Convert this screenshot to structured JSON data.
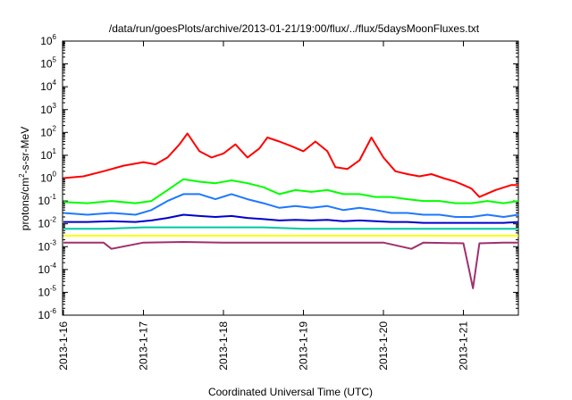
{
  "chart_data": {
    "type": "line",
    "title": "/data/run/goesPlots/archive/2013-01-21/19:00/flux/../flux/5daysMoonFluxes.txt",
    "xlabel": "Coordinated Universal Time (UTC)",
    "ylabel_parts": [
      "protons/cm",
      "2",
      "-s-sr-MeV"
    ],
    "ylabel": "protons/cm2-s-sr-MeV",
    "yscale": "log",
    "ylim": [
      1e-06,
      1000000.0
    ],
    "xlim": [
      "2013-1-16",
      "2013-1-21 19:00"
    ],
    "x_ticks": [
      "2013-1-16",
      "2013-1-17",
      "2013-1-18",
      "2013-1-19",
      "2013-1-20",
      "2013-1-21"
    ],
    "y_ticks": [
      {
        "base": "10",
        "exp": "-6"
      },
      {
        "base": "10",
        "exp": "-5"
      },
      {
        "base": "10",
        "exp": "-4"
      },
      {
        "base": "10",
        "exp": "-3"
      },
      {
        "base": "10",
        "exp": "-2"
      },
      {
        "base": "10",
        "exp": "-1"
      },
      {
        "base": "10",
        "exp": "0"
      },
      {
        "base": "10",
        "exp": "1"
      },
      {
        "base": "10",
        "exp": "2"
      },
      {
        "base": "10",
        "exp": "3"
      },
      {
        "base": "10",
        "exp": "4"
      },
      {
        "base": "10",
        "exp": "5"
      },
      {
        "base": "10",
        "exp": "6"
      }
    ],
    "grid": false,
    "series": [
      {
        "color": "#ff0000",
        "x": [
          0,
          0.25,
          0.5,
          0.75,
          1.0,
          1.15,
          1.3,
          1.45,
          1.55,
          1.7,
          1.85,
          2.0,
          2.15,
          2.3,
          2.45,
          2.55,
          2.7,
          2.85,
          3.0,
          3.15,
          3.3,
          3.4,
          3.55,
          3.7,
          3.85,
          4.0,
          4.15,
          4.3,
          4.45,
          4.6,
          4.75,
          4.9,
          5.0,
          5.1,
          5.2,
          5.4,
          5.6,
          5.79
        ],
        "y": [
          1.0,
          1.2,
          2.0,
          3.5,
          5.0,
          4.0,
          8.0,
          30,
          90,
          15,
          8.0,
          12,
          30,
          8.0,
          20,
          60,
          40,
          25,
          15,
          40,
          15,
          3.0,
          2.5,
          6.0,
          60,
          8.0,
          2.0,
          1.5,
          1.2,
          1.5,
          1.0,
          0.7,
          0.5,
          0.35,
          0.15,
          0.3,
          0.5,
          0.5
        ]
      },
      {
        "color": "#00ff00",
        "x": [
          0,
          0.3,
          0.6,
          0.9,
          1.1,
          1.3,
          1.5,
          1.7,
          1.9,
          2.1,
          2.3,
          2.5,
          2.7,
          2.9,
          3.1,
          3.3,
          3.5,
          3.7,
          3.9,
          4.1,
          4.3,
          4.5,
          4.7,
          4.9,
          5.1,
          5.3,
          5.5,
          5.79
        ],
        "y": [
          0.09,
          0.08,
          0.1,
          0.08,
          0.1,
          0.3,
          0.9,
          0.7,
          0.6,
          0.8,
          0.6,
          0.4,
          0.2,
          0.3,
          0.25,
          0.3,
          0.2,
          0.2,
          0.15,
          0.15,
          0.12,
          0.1,
          0.1,
          0.08,
          0.08,
          0.1,
          0.08,
          0.1
        ]
      },
      {
        "color": "#1e78ff",
        "x": [
          0,
          0.3,
          0.6,
          0.9,
          1.1,
          1.3,
          1.5,
          1.7,
          1.9,
          2.1,
          2.3,
          2.5,
          2.7,
          2.9,
          3.1,
          3.3,
          3.5,
          3.7,
          3.9,
          4.1,
          4.3,
          4.5,
          4.7,
          4.9,
          5.1,
          5.3,
          5.5,
          5.79
        ],
        "y": [
          0.03,
          0.025,
          0.03,
          0.025,
          0.04,
          0.1,
          0.2,
          0.2,
          0.12,
          0.2,
          0.12,
          0.08,
          0.05,
          0.06,
          0.05,
          0.06,
          0.04,
          0.05,
          0.04,
          0.03,
          0.03,
          0.025,
          0.025,
          0.02,
          0.02,
          0.025,
          0.02,
          0.025
        ]
      },
      {
        "color": "#0000cd",
        "x": [
          0,
          0.3,
          0.6,
          0.9,
          1.1,
          1.3,
          1.5,
          1.7,
          1.9,
          2.1,
          2.3,
          2.5,
          2.7,
          2.9,
          3.1,
          3.3,
          3.5,
          3.7,
          3.9,
          4.1,
          4.3,
          4.5,
          4.7,
          4.9,
          5.1,
          5.3,
          5.5,
          5.79
        ],
        "y": [
          0.012,
          0.012,
          0.013,
          0.012,
          0.014,
          0.018,
          0.025,
          0.022,
          0.02,
          0.022,
          0.018,
          0.016,
          0.014,
          0.015,
          0.014,
          0.015,
          0.013,
          0.014,
          0.013,
          0.012,
          0.012,
          0.011,
          0.011,
          0.011,
          0.011,
          0.011,
          0.011,
          0.012
        ]
      },
      {
        "color": "#00c8a0",
        "x": [
          0,
          0.5,
          1.0,
          1.5,
          2.0,
          2.5,
          3.0,
          3.5,
          4.0,
          4.5,
          5.0,
          5.5,
          5.79
        ],
        "y": [
          0.006,
          0.006,
          0.007,
          0.007,
          0.007,
          0.007,
          0.006,
          0.006,
          0.006,
          0.006,
          0.006,
          0.006,
          0.006
        ]
      },
      {
        "color": "#ffff00",
        "x": [
          0,
          0.5,
          1.0,
          1.5,
          2.0,
          2.5,
          3.0,
          3.5,
          4.0,
          4.5,
          5.0,
          5.5,
          5.79
        ],
        "y": [
          0.003,
          0.003,
          0.003,
          0.003,
          0.003,
          0.003,
          0.003,
          0.003,
          0.003,
          0.003,
          0.003,
          0.003,
          0.003
        ]
      },
      {
        "color": "#a0306e",
        "x": [
          0,
          0.5,
          0.6,
          1.0,
          1.5,
          2.0,
          2.5,
          3.0,
          3.5,
          4.0,
          4.35,
          4.5,
          5.0,
          5.07,
          5.12,
          5.2,
          5.5,
          5.79
        ],
        "y": [
          0.0015,
          0.0015,
          0.0008,
          0.0015,
          0.0016,
          0.0015,
          0.0015,
          0.0015,
          0.0015,
          0.0015,
          0.0008,
          0.0015,
          0.0014,
          0.0001,
          1.5e-05,
          0.0014,
          0.0015,
          0.0015
        ]
      }
    ]
  }
}
